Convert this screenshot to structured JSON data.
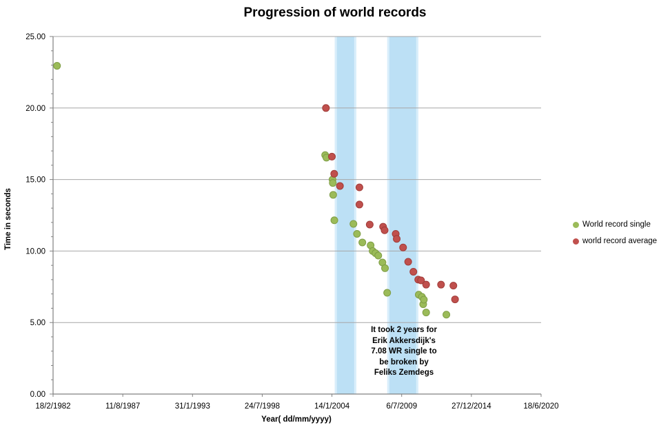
{
  "chart": {
    "title": "Progression of world records",
    "x_axis": {
      "title": "Year( dd/mm/yyyy)"
    },
    "y_axis": {
      "title": "Time in seconds"
    },
    "legend": [
      {
        "label": "World record single",
        "color": "#9BBB59"
      },
      {
        "label": "world record average",
        "color": "#C0504D"
      }
    ],
    "annotation": {
      "text": "It took 2 years for\nErik Akkersdijk's\n7.08 WR single to\nbe broken by\nFeliks Zemdegs"
    },
    "colors": {
      "single_fill": "#9BBB59",
      "single_stroke": "#7E9D45",
      "average_fill": "#C0504D",
      "average_stroke": "#A03C39",
      "band_fill": "#BCE0F5",
      "band_edge": "#D9EEFB",
      "gridline": "#A6A6A6",
      "axis_line": "#808080",
      "text": "#000000"
    }
  },
  "chart_data": {
    "type": "scatter",
    "title": "Progression of world records",
    "xlabel": "Year( dd/mm/yyyy)",
    "ylabel": "Time in seconds",
    "xlim_years": [
      1982.13,
      2020.46
    ],
    "ylim": [
      0,
      25
    ],
    "y_tick_step": 5,
    "y_minor_tick_step": 1,
    "y_tick_labels": [
      "0.00",
      "5.00",
      "10.00",
      "15.00",
      "20.00",
      "25.00"
    ],
    "x_tick_labels": [
      "18/2/1982",
      "11/8/1987",
      "31/1/1993",
      "24/7/1998",
      "14/1/2004",
      "6/7/2009",
      "27/12/2014",
      "18/6/2020"
    ],
    "grid": "horizontal-only",
    "legend_position": "right",
    "highlight_bands_years": [
      [
        2004.26,
        2005.94
      ],
      [
        2008.38,
        2010.81
      ]
    ],
    "series": [
      {
        "name": "World record single",
        "color": "#9BBB59",
        "points": [
          [
            1982.44,
            22.95
          ],
          [
            2003.5,
            16.71
          ],
          [
            2003.6,
            16.53
          ],
          [
            2004.08,
            15.0
          ],
          [
            2004.1,
            14.76
          ],
          [
            2004.13,
            13.93
          ],
          [
            2004.22,
            12.15
          ],
          [
            2005.72,
            11.9
          ],
          [
            2006.0,
            11.2
          ],
          [
            2006.42,
            10.6
          ],
          [
            2007.07,
            10.4
          ],
          [
            2007.23,
            10.0
          ],
          [
            2007.45,
            9.85
          ],
          [
            2007.67,
            9.68
          ],
          [
            2008.0,
            9.2
          ],
          [
            2008.2,
            8.8
          ],
          [
            2008.37,
            7.08
          ],
          [
            2010.85,
            6.95
          ],
          [
            2011.1,
            6.8
          ],
          [
            2011.2,
            6.28
          ],
          [
            2011.25,
            6.6
          ],
          [
            2011.43,
            5.7
          ],
          [
            2013.02,
            5.55
          ]
        ]
      },
      {
        "name": "world record average",
        "color": "#C0504D",
        "points": [
          [
            2003.56,
            20.0
          ],
          [
            2004.03,
            16.6
          ],
          [
            2004.21,
            15.4
          ],
          [
            2004.66,
            14.55
          ],
          [
            2006.19,
            14.45
          ],
          [
            2006.19,
            13.25
          ],
          [
            2007.0,
            11.85
          ],
          [
            2008.05,
            11.7
          ],
          [
            2008.17,
            11.45
          ],
          [
            2009.04,
            11.2
          ],
          [
            2009.12,
            10.85
          ],
          [
            2009.62,
            10.25
          ],
          [
            2010.02,
            9.25
          ],
          [
            2010.43,
            8.55
          ],
          [
            2010.81,
            8.0
          ],
          [
            2011.03,
            7.95
          ],
          [
            2011.43,
            7.65
          ],
          [
            2012.6,
            7.65
          ],
          [
            2013.57,
            7.58
          ],
          [
            2013.7,
            6.62
          ]
        ]
      }
    ]
  }
}
